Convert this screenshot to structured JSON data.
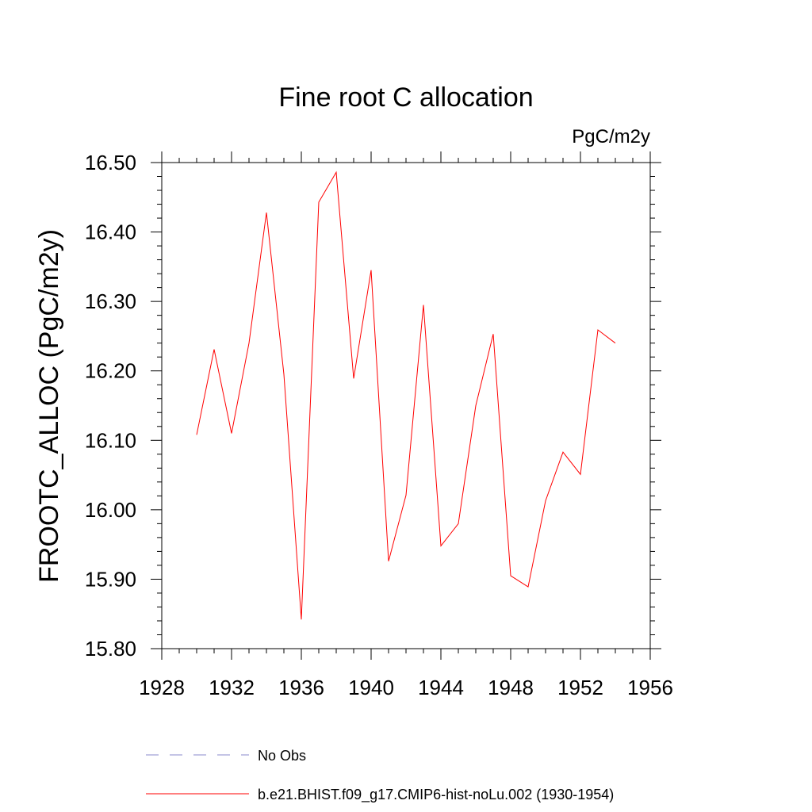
{
  "chart_data": {
    "type": "line",
    "title": "Fine root C allocation",
    "units": "PgC/m2y",
    "ylabel": "FROOTC_ALLOC  (PgC/m2y)",
    "xlabel": "",
    "xlim": [
      1928,
      1956
    ],
    "ylim": [
      15.8,
      16.5
    ],
    "xticks": [
      1928,
      1932,
      1936,
      1940,
      1944,
      1948,
      1952,
      1956
    ],
    "yticks": [
      15.8,
      15.9,
      16.0,
      16.1,
      16.2,
      16.3,
      16.4,
      16.5
    ],
    "xtick_labels": [
      "1928",
      "1932",
      "1936",
      "1940",
      "1944",
      "1948",
      "1952",
      "1956"
    ],
    "ytick_labels": [
      "15.80",
      "15.90",
      "16.00",
      "16.10",
      "16.20",
      "16.30",
      "16.40",
      "16.50"
    ],
    "grid": false,
    "legend_position": "bottom",
    "series": [
      {
        "name": "b.e21.BHIST.f09_g17.CMIP6-hist-noLu.002 (1930-1954)",
        "color": "#ff0000",
        "dash": "solid",
        "x": [
          1930,
          1931,
          1932,
          1933,
          1934,
          1935,
          1936,
          1937,
          1938,
          1939,
          1940,
          1941,
          1942,
          1943,
          1944,
          1945,
          1946,
          1947,
          1948,
          1949,
          1950,
          1951,
          1952,
          1953,
          1954
        ],
        "y": [
          16.108,
          16.231,
          16.11,
          16.24,
          16.428,
          16.195,
          15.842,
          16.443,
          16.486,
          16.189,
          16.345,
          15.926,
          16.021,
          16.295,
          15.948,
          15.98,
          16.15,
          16.253,
          15.905,
          15.889,
          16.013,
          16.083,
          16.051,
          16.259,
          16.24
        ]
      }
    ],
    "legend": [
      {
        "label": "No Obs",
        "color": "#8888cc",
        "dash": "dashed"
      },
      {
        "label": "b.e21.BHIST.f09_g17.CMIP6-hist-noLu.002 (1930-1954)",
        "color": "#ff0000",
        "dash": "solid"
      }
    ]
  }
}
